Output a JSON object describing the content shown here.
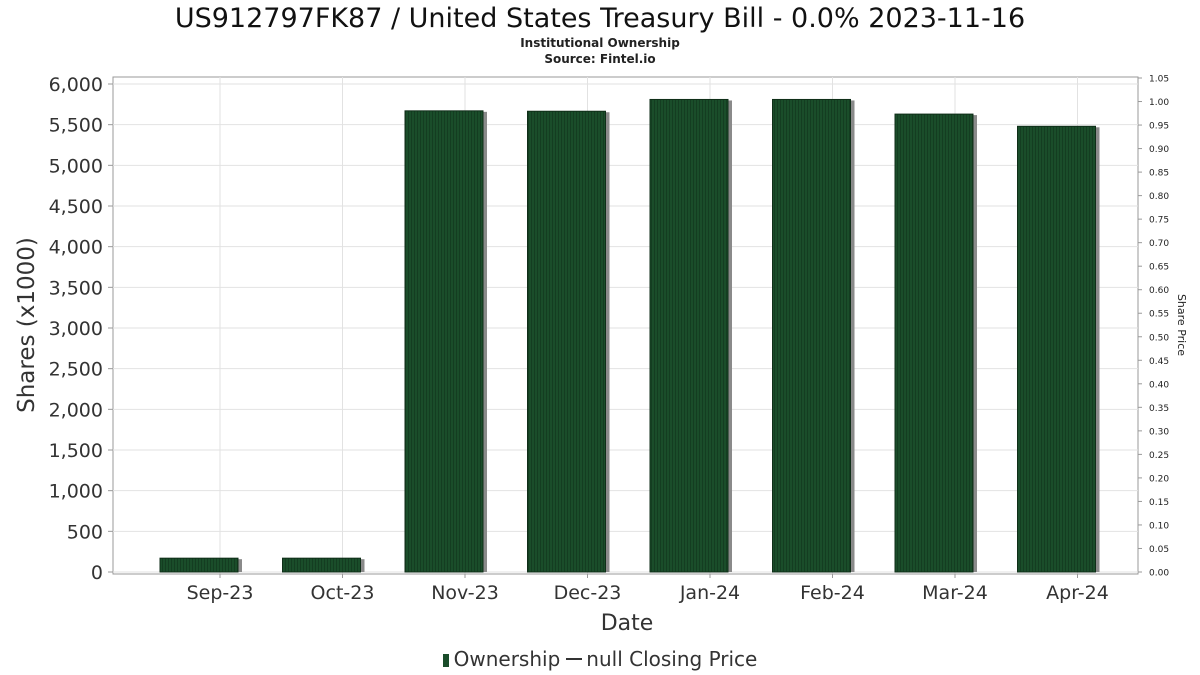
{
  "header": {
    "title": "US912797FK87 / United States Treasury Bill - 0.0% 2023-11-16",
    "subtitle": "Institutional Ownership",
    "source": "Source: Fintel.io"
  },
  "legend": {
    "ownership_label": "Ownership",
    "price_label": "null Closing Price"
  },
  "colors": {
    "bar": "#1a4d2a",
    "bar_shadow": "#8a8a8a",
    "grid": "#e2e2e2",
    "axis": "#999999"
  },
  "chart_data": {
    "type": "bar",
    "title": "US912797FK87 / United States Treasury Bill - 0.0% 2023-11-16",
    "subtitle": "Institutional Ownership",
    "xlabel": "Date",
    "ylabel": "Shares (x1000)",
    "y2label": "Share Price",
    "categories": [
      "Sep-23",
      "Oct-23",
      "Nov-23",
      "Dec-23",
      "Jan-24",
      "Feb-24",
      "Mar-24",
      "Apr-24"
    ],
    "series": [
      {
        "name": "Ownership",
        "values": [
          170,
          170,
          5670,
          5665,
          5810,
          5810,
          5630,
          5480
        ]
      }
    ],
    "ylim": [
      0,
      6000
    ],
    "yticks": [
      0,
      500,
      1000,
      1500,
      2000,
      2500,
      3000,
      3500,
      4000,
      4500,
      5000,
      5500,
      6000
    ],
    "ytick_labels": [
      "0",
      "500",
      "1,000",
      "1,500",
      "2,000",
      "2,500",
      "3,000",
      "3,500",
      "4,000",
      "4,500",
      "5,000",
      "5,500",
      "6,000"
    ],
    "y2lim": [
      0,
      1.05
    ],
    "y2ticks": [
      0,
      0.05,
      0.1,
      0.15,
      0.2,
      0.25,
      0.3,
      0.35,
      0.4,
      0.45,
      0.5,
      0.55,
      0.6,
      0.65,
      0.7,
      0.75,
      0.8,
      0.85,
      0.9,
      0.95,
      1.0,
      1.05
    ],
    "y2tick_labels": [
      "0.00",
      "0.05",
      "0.10",
      "0.15",
      "0.20",
      "0.25",
      "0.30",
      "0.35",
      "0.40",
      "0.45",
      "0.50",
      "0.55",
      "0.60",
      "0.65",
      "0.70",
      "0.75",
      "0.80",
      "0.85",
      "0.90",
      "0.95",
      "1.00",
      "1.05"
    ],
    "grid": true,
    "legend_position": "bottom"
  }
}
